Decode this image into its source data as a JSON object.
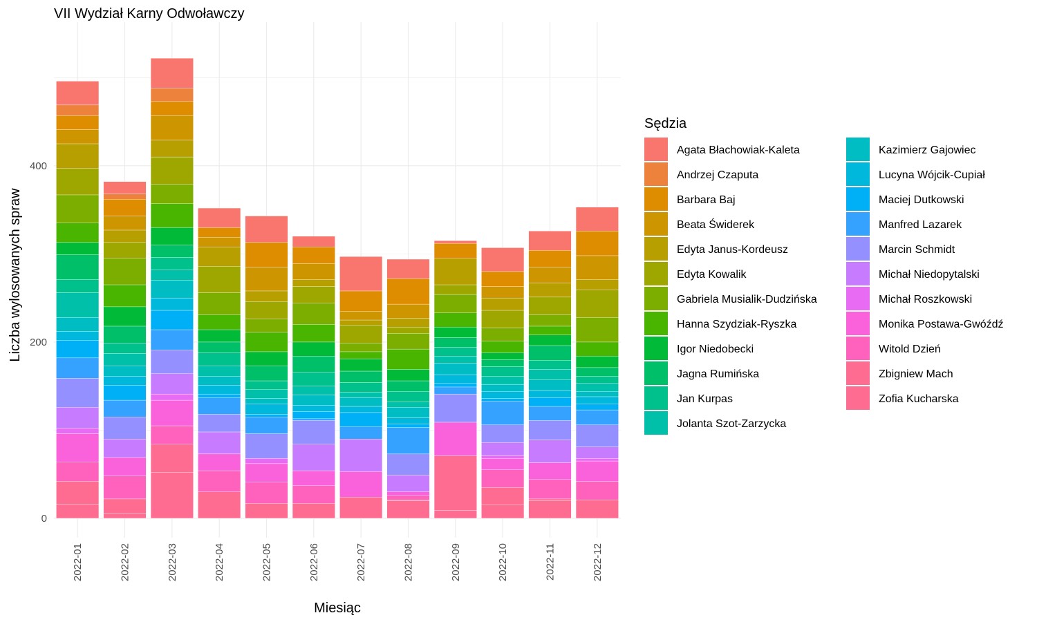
{
  "chart_data": {
    "type": "bar",
    "stacked": true,
    "title": "VII Wydział Karny Odwoławczy",
    "xlabel": "Miesiąc",
    "ylabel": "Liczba wylosowanych spraw",
    "legend_title": "Sędzia",
    "legend_position": "right",
    "grid": true,
    "ylim": [
      -22,
      563
    ],
    "yticks": [
      0,
      200,
      400
    ],
    "categories": [
      "2022-01",
      "2022-02",
      "2022-03",
      "2022-04",
      "2022-05",
      "2022-06",
      "2022-07",
      "2022-08",
      "2022-09",
      "2022-10",
      "2022-11",
      "2022-12"
    ],
    "series": [
      {
        "name": "Agata Błachowiak-Kaleta",
        "color": "#F8766D",
        "values": [
          27,
          14,
          34,
          22,
          30,
          12,
          39,
          22,
          3,
          27,
          22,
          27
        ]
      },
      {
        "name": "Andrzej Czaputa",
        "color": "#EC823C",
        "values": [
          12,
          6,
          15,
          0,
          0,
          0,
          0,
          0,
          0,
          0,
          0,
          0
        ]
      },
      {
        "name": "Barbara Baj",
        "color": "#DE8C00",
        "values": [
          16,
          19,
          16,
          11,
          28,
          19,
          23,
          29,
          17,
          17,
          19,
          28
        ]
      },
      {
        "name": "Beata Świderek",
        "color": "#CD9600",
        "values": [
          16,
          16,
          28,
          11,
          27,
          18,
          10,
          16,
          0,
          13,
          18,
          27
        ]
      },
      {
        "name": "Edyta Janus-Kordeusz",
        "color": "#B79F00",
        "values": [
          28,
          14,
          19,
          22,
          12,
          8,
          6,
          10,
          30,
          14,
          16,
          12
        ]
      },
      {
        "name": "Edyta Kowalik",
        "color": "#9DA700",
        "values": [
          30,
          18,
          31,
          30,
          20,
          19,
          20,
          7,
          11,
          20,
          20,
          31
        ]
      },
      {
        "name": "Gabriela Musialik-Dudzińska",
        "color": "#7CAE00",
        "values": [
          32,
          30,
          22,
          25,
          15,
          24,
          10,
          18,
          21,
          15,
          13,
          28
        ]
      },
      {
        "name": "Hanna Szydziak-Ryszka",
        "color": "#49B500",
        "values": [
          22,
          25,
          27,
          17,
          22,
          20,
          8,
          23,
          16,
          13,
          10,
          16
        ]
      },
      {
        "name": "Igor Niedobecki",
        "color": "#00BA38",
        "values": [
          14,
          22,
          20,
          14,
          16,
          16,
          14,
          13,
          12,
          8,
          12,
          13
        ]
      },
      {
        "name": "Jagna Rumińska",
        "color": "#00BF69",
        "values": [
          28,
          19,
          14,
          12,
          17,
          18,
          13,
          12,
          11,
          8,
          17,
          10
        ]
      },
      {
        "name": "Jan Kurpas",
        "color": "#00C08B",
        "values": [
          15,
          12,
          14,
          15,
          10,
          16,
          11,
          12,
          10,
          11,
          10,
          8
        ]
      },
      {
        "name": "Jolanta Szot-Zarzycka",
        "color": "#00C0AA",
        "values": [
          28,
          14,
          12,
          12,
          10,
          10,
          6,
          6,
          8,
          9,
          12,
          9
        ]
      },
      {
        "name": "Kazimierz Gajowiec",
        "color": "#00BDC4",
        "values": [
          16,
          12,
          20,
          10,
          6,
          12,
          10,
          12,
          13,
          8,
          12,
          6
        ]
      },
      {
        "name": "Lucyna Wójcik-Cupiał",
        "color": "#00B8DC",
        "values": [
          10,
          10,
          14,
          10,
          12,
          7,
          7,
          7,
          10,
          8,
          8,
          8
        ]
      },
      {
        "name": "Maciej Dutkowski",
        "color": "#00B0F6",
        "values": [
          20,
          17,
          22,
          4,
          3,
          8,
          16,
          4,
          4,
          3,
          10,
          7
        ]
      },
      {
        "name": "Manfred Lazarek",
        "color": "#35A2FF",
        "values": [
          23,
          19,
          23,
          19,
          19,
          2,
          14,
          30,
          8,
          27,
          16,
          17
        ]
      },
      {
        "name": "Marcin Schmidt",
        "color": "#9590FF",
        "values": [
          33,
          25,
          27,
          20,
          28,
          27,
          0,
          24,
          32,
          20,
          22,
          25
        ]
      },
      {
        "name": "Michał Niedopytalski",
        "color": "#C77CFF",
        "values": [
          24,
          21,
          23,
          25,
          0,
          30,
          37,
          19,
          0,
          15,
          26,
          13
        ]
      },
      {
        "name": "Michał Roszkowski",
        "color": "#E76BF3",
        "values": [
          6,
          0,
          7,
          0,
          6,
          0,
          0,
          0,
          0,
          3,
          0,
          3
        ]
      },
      {
        "name": "Monika Postawa-Gwóźdź",
        "color": "#FA62DB",
        "values": [
          32,
          21,
          29,
          19,
          21,
          17,
          29,
          4,
          38,
          13,
          19,
          23
        ]
      },
      {
        "name": "Witold Dzień",
        "color": "#FF62BC",
        "values": [
          22,
          26,
          21,
          24,
          24,
          20,
          0,
          5,
          0,
          20,
          22,
          21
        ]
      },
      {
        "name": "Zbigniew Mach",
        "color": "#FF6C91",
        "values": [
          26,
          17,
          32,
          0,
          0,
          0,
          0,
          1,
          62,
          20,
          2,
          0
        ]
      },
      {
        "name": "Zofia Kucharska",
        "color": "#FF6C91",
        "values": [
          16,
          5,
          52,
          30,
          17,
          17,
          24,
          20,
          9,
          15,
          20,
          21
        ]
      }
    ]
  }
}
